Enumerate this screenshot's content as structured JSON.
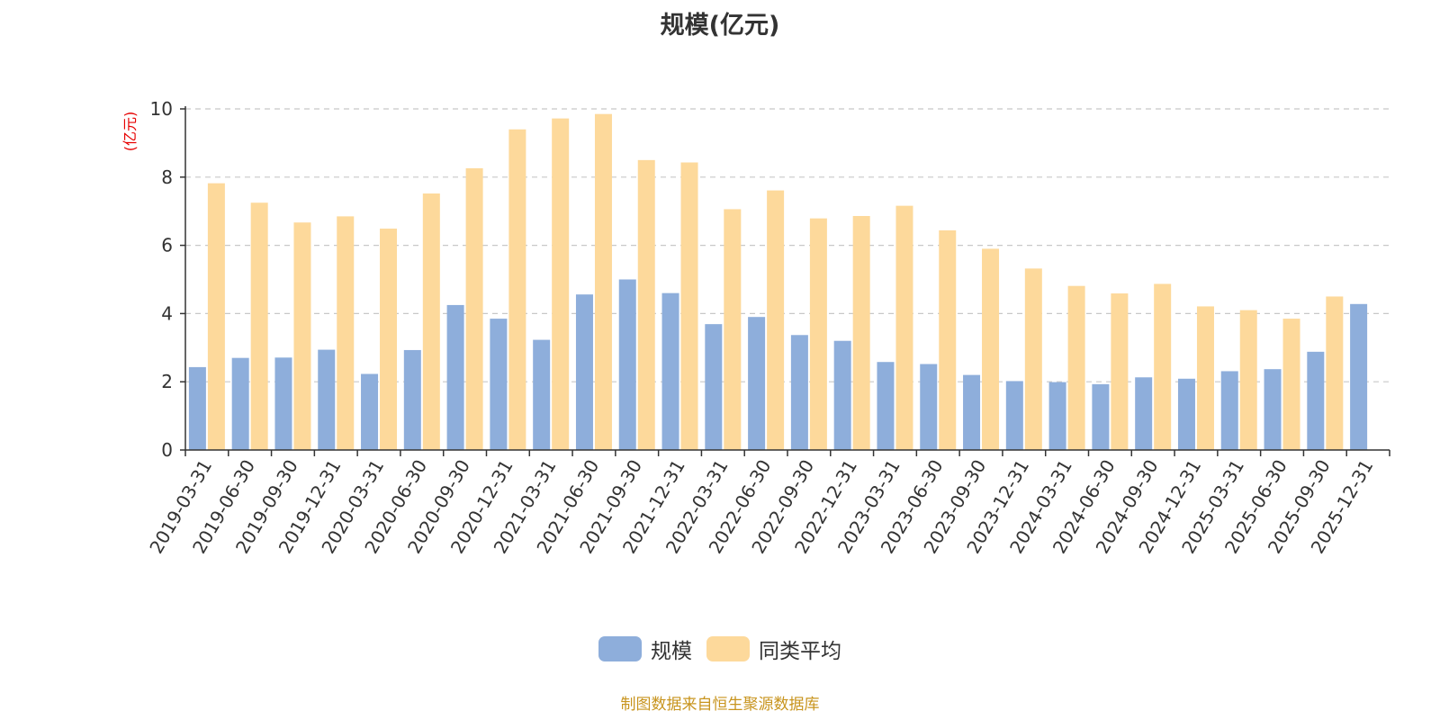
{
  "footer": {
    "source_text": "制图数据来自恒生聚源数据库",
    "color": "#c8941e"
  },
  "chart_data": {
    "type": "bar",
    "title": "规模(亿元)",
    "ylabel": "(亿元)",
    "ylim": [
      0,
      10
    ],
    "yticks": [
      "0",
      "2",
      "4",
      "6",
      "8",
      "10"
    ],
    "grid": true,
    "legend_position": "bottom-center",
    "categories": [
      "2019-03-31",
      "2019-06-30",
      "2019-09-30",
      "2019-12-31",
      "2020-03-31",
      "2020-06-30",
      "2020-09-30",
      "2020-12-31",
      "2021-03-31",
      "2021-06-30",
      "2021-09-30",
      "2021-12-31",
      "2022-03-31",
      "2022-06-30",
      "2022-09-30",
      "2022-12-31",
      "2023-03-31",
      "2023-06-30",
      "2023-09-30",
      "2023-12-31",
      "2024-03-31",
      "2024-06-30",
      "2024-09-30",
      "2024-12-31",
      "2025-03-31",
      "2025-06-30",
      "2025-09-30",
      "2025-12-31"
    ],
    "series": [
      {
        "name": "规模",
        "color": "#8eaedb",
        "values": [
          2.43,
          2.7,
          2.71,
          2.94,
          2.23,
          2.93,
          4.25,
          3.85,
          3.23,
          4.56,
          5.0,
          4.6,
          3.69,
          3.9,
          3.37,
          3.2,
          2.58,
          2.52,
          2.2,
          2.02,
          1.99,
          1.93,
          2.13,
          2.09,
          2.31,
          2.37,
          2.88,
          4.28
        ]
      },
      {
        "name": "同类平均",
        "color": "#fdd99b",
        "values": [
          7.82,
          7.25,
          6.67,
          6.85,
          6.49,
          7.52,
          8.26,
          9.4,
          9.72,
          9.85,
          8.5,
          8.43,
          7.06,
          7.61,
          6.79,
          6.86,
          7.16,
          6.44,
          5.9,
          5.32,
          4.81,
          4.59,
          4.87,
          4.21,
          4.1,
          3.85,
          4.5,
          null
        ]
      }
    ]
  }
}
